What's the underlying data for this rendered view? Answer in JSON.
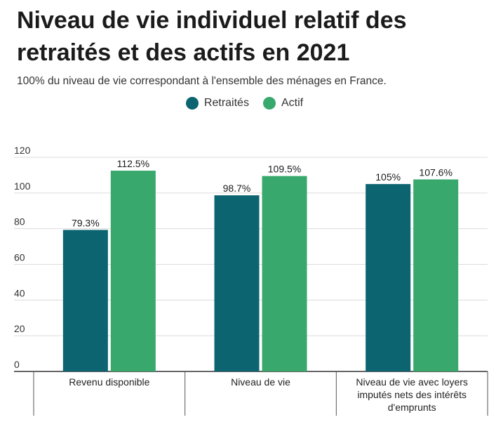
{
  "header": {
    "title": "Niveau de vie individuel relatif des retraités et des actifs en 2021",
    "subtitle": "100% du niveau de vie correspondant à l'ensemble des ménages en France."
  },
  "legend": [
    {
      "label": "Retraités",
      "color": "#0b6470"
    },
    {
      "label": "Actif",
      "color": "#38a86d"
    }
  ],
  "chart_data": {
    "type": "bar",
    "title": "Niveau de vie individuel relatif des retraités et des actifs en 2021",
    "subtitle": "100% du niveau de vie correspondant à l'ensemble des ménages en France.",
    "xlabel": "",
    "ylabel": "",
    "ylim": [
      0,
      120
    ],
    "yticks": [
      0,
      20,
      40,
      60,
      80,
      100,
      120
    ],
    "grid": true,
    "legend_position": "top-center",
    "categories": [
      [
        "Revenu disponible"
      ],
      [
        "Niveau de vie"
      ],
      [
        "Niveau de vie avec loyers",
        "imputés nets des intérêts",
        "d'emprunts"
      ]
    ],
    "series": [
      {
        "name": "Retraités",
        "color": "#0b6470",
        "values": [
          79.3,
          98.7,
          105
        ],
        "labels": [
          "79.3%",
          "98.7%",
          "105%"
        ]
      },
      {
        "name": "Actif",
        "color": "#38a86d",
        "values": [
          112.5,
          109.5,
          107.6
        ],
        "labels": [
          "112.5%",
          "109.5%",
          "107.6%"
        ]
      }
    ]
  }
}
